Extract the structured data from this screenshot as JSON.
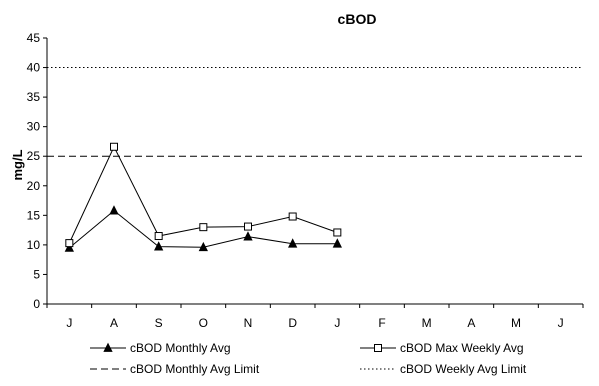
{
  "chart_data": {
    "type": "line",
    "title": "cBOD",
    "xlabel": "",
    "ylabel": "mg/L",
    "categories": [
      "J",
      "A",
      "S",
      "O",
      "N",
      "D",
      "J",
      "F",
      "M",
      "A",
      "M",
      "J"
    ],
    "ylim": [
      0,
      45
    ],
    "yticks": [
      0,
      5,
      10,
      15,
      20,
      25,
      30,
      35,
      40,
      45
    ],
    "grid": false,
    "legend_position": "bottom",
    "series": [
      {
        "name": "cBOD Monthly Avg",
        "values": [
          9.5,
          15.8,
          9.7,
          9.6,
          11.4,
          10.2,
          10.2,
          null,
          null,
          null,
          null,
          null
        ],
        "marker": "filled-triangle",
        "line_style": "solid",
        "color": "#000000"
      },
      {
        "name": "cBOD Max Weekly Avg",
        "values": [
          10.3,
          26.6,
          11.5,
          13.0,
          13.1,
          14.8,
          12.1,
          null,
          null,
          null,
          null,
          null
        ],
        "marker": "open-square",
        "line_style": "solid",
        "color": "#000000"
      },
      {
        "name": "cBOD Monthly Avg Limit",
        "constant": 25,
        "line_style": "dashed",
        "color": "#000000"
      },
      {
        "name": "cBOD Weekly Avg Limit",
        "constant": 40,
        "line_style": "dotted",
        "color": "#000000"
      }
    ]
  }
}
